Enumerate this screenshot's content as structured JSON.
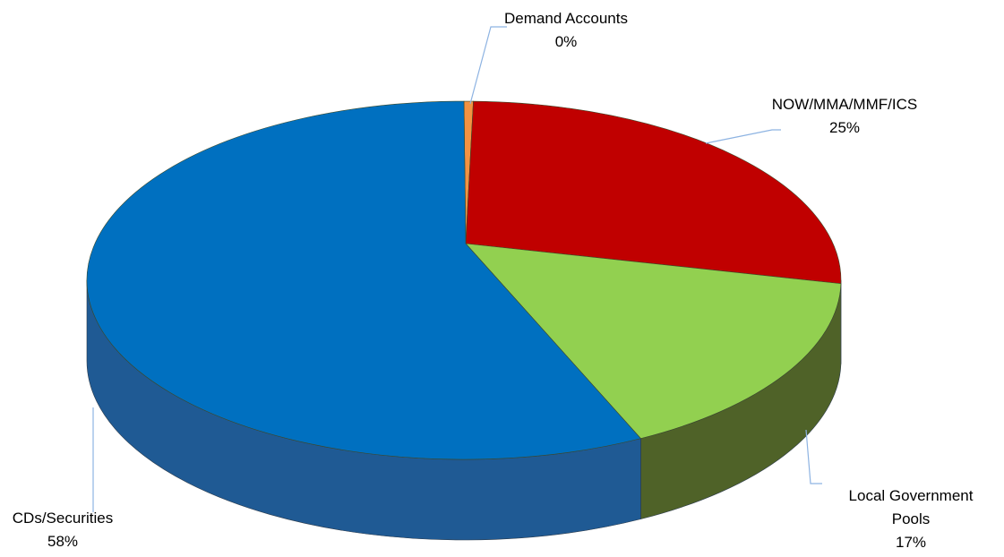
{
  "chart_data": {
    "type": "pie3d",
    "categories": [
      "Demand Accounts",
      "NOW/MMA/MMF/ICS",
      "Local Government Pools",
      "CDs/Securities"
    ],
    "values": [
      0.4,
      25,
      17,
      58
    ],
    "value_labels": [
      "0%",
      "25%",
      "17%",
      "58%"
    ],
    "colors": [
      "#f39242",
      "#c00000",
      "#92d050",
      "#0070c0"
    ],
    "side_colors": [
      "#b8641f",
      "#7a0000",
      "#4f6228",
      "#1f5a94"
    ]
  }
}
